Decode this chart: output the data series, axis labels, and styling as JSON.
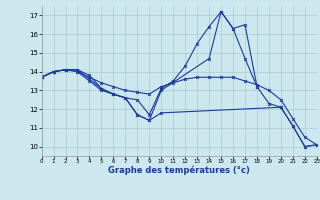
{
  "xlabel": "Graphe des températures (°c)",
  "xlim": [
    0,
    23
  ],
  "ylim": [
    9.5,
    17.5
  ],
  "yticks": [
    10,
    11,
    12,
    13,
    14,
    15,
    16,
    17
  ],
  "xticks": [
    0,
    1,
    2,
    3,
    4,
    5,
    6,
    7,
    8,
    9,
    10,
    11,
    12,
    13,
    14,
    15,
    16,
    17,
    18,
    19,
    20,
    21,
    22,
    23
  ],
  "background_color": "#cce8ee",
  "line_color": "#1a3a9e",
  "grid_color": "#aacccc",
  "lines": [
    {
      "x": [
        0,
        1,
        2,
        3,
        4,
        5,
        6,
        7,
        8,
        9,
        10,
        14,
        15,
        16,
        17,
        18
      ],
      "y": [
        13.7,
        14.0,
        14.1,
        14.1,
        13.8,
        13.1,
        12.8,
        12.6,
        11.7,
        11.4,
        13.0,
        14.7,
        17.2,
        16.3,
        16.5,
        13.2
      ]
    },
    {
      "x": [
        0,
        1,
        2,
        3,
        4,
        5,
        6,
        7,
        8,
        9,
        10,
        20,
        21,
        22,
        23
      ],
      "y": [
        13.7,
        14.0,
        14.1,
        14.1,
        13.6,
        13.1,
        12.8,
        12.6,
        11.7,
        11.4,
        11.8,
        12.1,
        11.1,
        10.0,
        10.1
      ]
    },
    {
      "x": [
        0,
        1,
        2,
        3,
        4,
        5,
        6,
        7,
        8,
        9,
        10,
        11,
        12,
        13,
        14,
        15,
        16,
        17,
        18,
        19,
        20,
        21,
        22,
        23
      ],
      "y": [
        13.7,
        14.0,
        14.1,
        14.0,
        13.5,
        13.0,
        12.8,
        12.6,
        12.5,
        11.7,
        13.1,
        13.5,
        14.3,
        15.5,
        16.4,
        17.2,
        16.3,
        14.7,
        13.2,
        12.3,
        12.1,
        11.1,
        10.0,
        10.1
      ]
    },
    {
      "x": [
        0,
        1,
        2,
        3,
        4,
        5,
        6,
        7,
        8,
        9,
        10,
        11,
        12,
        13,
        14,
        15,
        16,
        17,
        18,
        19,
        20,
        21,
        22,
        23
      ],
      "y": [
        13.7,
        14.0,
        14.1,
        14.0,
        13.7,
        13.4,
        13.2,
        13.0,
        12.9,
        12.8,
        13.2,
        13.4,
        13.6,
        13.7,
        13.7,
        13.7,
        13.7,
        13.5,
        13.3,
        13.0,
        12.5,
        11.5,
        10.5,
        10.1
      ]
    }
  ]
}
